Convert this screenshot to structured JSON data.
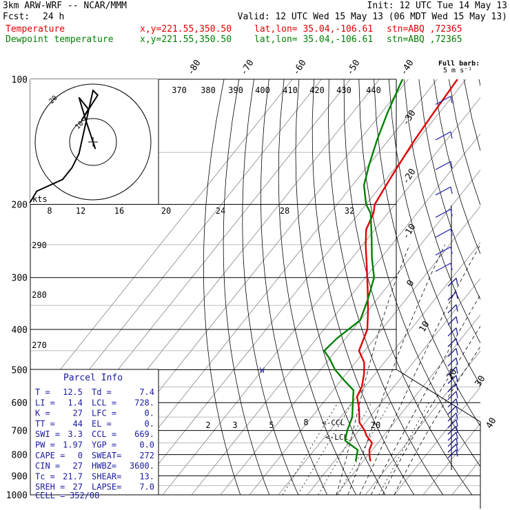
{
  "header": {
    "model": "3km ARW-WRF -- NCAR/MMM",
    "init": "Init: 12 UTC Tue 14 May 13",
    "fcst_label": "Fcst:",
    "fcst_value": "24 h",
    "valid": "Valid: 12 UTC Wed 15 May 13 (06 MDT Wed 15 May 13)"
  },
  "legend": [
    {
      "label": "Temperature",
      "xy": "x,y=221.55,350.50",
      "latlon": "lat,lon= 35.04,-106.61",
      "stn": "stn=ABQ ,72365",
      "color": "#e00000"
    },
    {
      "label": "Dewpoint temperature",
      "xy": "x,y=221.55,350.50",
      "latlon": "lat,lon= 35.04,-106.61",
      "stn": "stn=ABQ ,72365",
      "color": "#008000"
    }
  ],
  "barb_legend": {
    "line1": "Full barb:",
    "line2": "5 m s⁻¹"
  },
  "chart_data": {
    "type": "skew-t",
    "y_axis": {
      "scale": "log-pressure",
      "ylim": [
        1000,
        100
      ],
      "ticks": [
        100,
        200,
        300,
        400,
        500,
        600,
        700,
        800,
        900,
        1000
      ]
    },
    "isotherm_labels": [
      "-80",
      "-70",
      "-60",
      "-50",
      "-40",
      "-30",
      "-20",
      "-10",
      "0",
      "10",
      "20",
      "30",
      "40"
    ],
    "theta_labels": [
      "370",
      "380",
      "390",
      "400",
      "410",
      "420",
      "430",
      "440",
      "290",
      "280",
      "270"
    ],
    "mixing_ratio_labels": [
      "2",
      "3",
      "5",
      "8",
      "20"
    ],
    "series": [
      {
        "name": "Temperature",
        "color": "#e00000",
        "data": [
          [
            830,
            12.5
          ],
          [
            810,
            11
          ],
          [
            780,
            9
          ],
          [
            750,
            8
          ],
          [
            720,
            4
          ],
          [
            700,
            2
          ],
          [
            670,
            -2
          ],
          [
            620,
            -6
          ],
          [
            580,
            -10
          ],
          [
            550,
            -11
          ],
          [
            510,
            -14
          ],
          [
            480,
            -17
          ],
          [
            450,
            -22
          ],
          [
            400,
            -25
          ],
          [
            360,
            -30
          ],
          [
            320,
            -36
          ],
          [
            280,
            -43
          ],
          [
            250,
            -49
          ],
          [
            230,
            -53
          ],
          [
            210,
            -55
          ],
          [
            200,
            -57
          ],
          [
            185,
            -58
          ],
          [
            170,
            -59
          ],
          [
            155,
            -60
          ],
          [
            140,
            -61
          ],
          [
            120,
            -62
          ],
          [
            100,
            -63
          ]
        ]
      },
      {
        "name": "Dewpoint temperature",
        "color": "#008000",
        "data": [
          [
            830,
            7.4
          ],
          [
            780,
            5
          ],
          [
            740,
            -2
          ],
          [
            700,
            -4
          ],
          [
            650,
            -6
          ],
          [
            610,
            -9
          ],
          [
            560,
            -13
          ],
          [
            530,
            -19
          ],
          [
            500,
            -25
          ],
          [
            470,
            -30
          ],
          [
            450,
            -34
          ],
          [
            420,
            -33
          ],
          [
            380,
            -30
          ],
          [
            340,
            -33
          ],
          [
            300,
            -37
          ],
          [
            270,
            -43
          ],
          [
            240,
            -49
          ],
          [
            210,
            -56
          ],
          [
            200,
            -60
          ],
          [
            180,
            -66
          ],
          [
            160,
            -70
          ],
          [
            140,
            -74
          ],
          [
            120,
            -78
          ],
          [
            100,
            -82
          ]
        ]
      }
    ],
    "annotations": {
      "lcl_marker": "<-LCL",
      "ccl_marker": "<-CCL",
      "w_marker": "W"
    }
  },
  "hodograph": {
    "speed_ticks": [
      "8",
      "12",
      "16",
      "20",
      "24",
      "28",
      "32"
    ],
    "unit": "kts",
    "ring_labels": [
      "20",
      "10"
    ],
    "trace_kts": [
      [
        -27,
        -26
      ],
      [
        -24,
        -21
      ],
      [
        -13,
        -16
      ],
      [
        -9,
        -11
      ],
      [
        -6,
        -5
      ],
      [
        0,
        22
      ],
      [
        2,
        20
      ],
      [
        -5,
        9
      ],
      [
        -2,
        14
      ],
      [
        -6,
        19
      ],
      [
        -3,
        9
      ],
      [
        1,
        -3
      ]
    ]
  },
  "parcel_info": {
    "title": "Parcel Info",
    "rows": [
      {
        "l1": "T   =",
        "v1": "12.5",
        "l2": "Td =",
        "v2": "7.4"
      },
      {
        "l1": "LI  =",
        "v1": "1.4",
        "l2": "LCL =",
        "v2": "728."
      },
      {
        "l1": "K   =",
        "v1": "27",
        "l2": "LFC =",
        "v2": "0."
      },
      {
        "l1": "TT  =",
        "v1": "44",
        "l2": "EL  =",
        "v2": "0."
      },
      {
        "l1": "SWI =",
        "v1": "3.3",
        "l2": "CCL =",
        "v2": "669."
      },
      {
        "l1": "PW  =",
        "v1": "1.97",
        "l2": "YGP =",
        "v2": "0.0"
      },
      {
        "l1": "CAPE =",
        "v1": "0",
        "l2": "SWEAT=",
        "v2": "272"
      },
      {
        "l1": "CIN  =",
        "v1": "27",
        "l2": "HWBZ=",
        "v2": "3600."
      },
      {
        "l1": "Tc   =",
        "v1": "21.7",
        "l2": "SHEAR=",
        "v2": "13."
      },
      {
        "l1": "SREH =",
        "v1": "27",
        "l2": "LAPSE=",
        "v2": "7.0"
      }
    ],
    "cell_label": "CELL =",
    "cell_value": "352/08"
  }
}
